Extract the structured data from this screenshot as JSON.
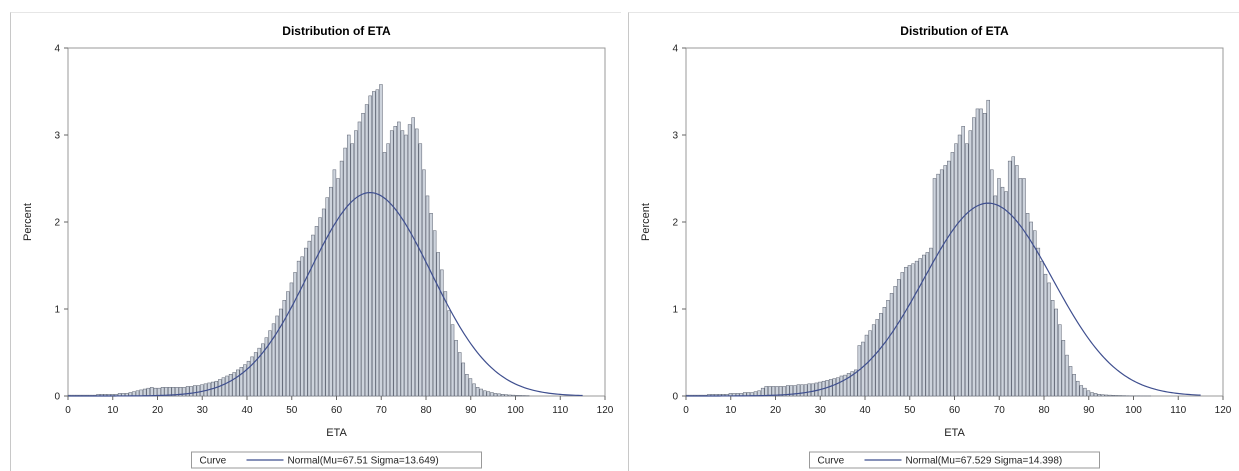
{
  "chart_data": [
    {
      "type": "bar",
      "title": "Distribution of ETA",
      "xlabel": "ETA",
      "ylabel": "Percent",
      "xlim": [
        0,
        120
      ],
      "ylim": [
        0,
        4
      ],
      "xticks": [
        "0",
        "10",
        "20",
        "30",
        "40",
        "50",
        "60",
        "70",
        "80",
        "90",
        "100",
        "110",
        "120"
      ],
      "yticks": [
        "0",
        "1",
        "2",
        "3",
        "4"
      ],
      "bin_width": 0.8,
      "series": [
        {
          "type": "histogram",
          "x": [
            0.4,
            1.2,
            2.0,
            2.8,
            3.6,
            4.4,
            5.2,
            6.0,
            6.8,
            7.6,
            8.4,
            9.2,
            10.0,
            10.8,
            11.6,
            12.4,
            13.2,
            14.0,
            14.8,
            15.6,
            16.4,
            17.2,
            18.0,
            18.8,
            19.6,
            20.4,
            21.2,
            22.0,
            22.8,
            23.6,
            24.4,
            25.2,
            26.0,
            26.8,
            27.6,
            28.4,
            29.2,
            30.0,
            30.8,
            31.6,
            32.4,
            33.2,
            34.0,
            34.8,
            35.6,
            36.4,
            37.2,
            38.0,
            38.8,
            39.6,
            40.4,
            41.2,
            42.0,
            42.8,
            43.6,
            44.4,
            45.2,
            46.0,
            46.8,
            47.6,
            48.4,
            49.2,
            50.0,
            50.8,
            51.6,
            52.4,
            53.2,
            54.0,
            54.8,
            55.6,
            56.4,
            57.2,
            58.0,
            58.8,
            59.6,
            60.4,
            61.2,
            62.0,
            62.8,
            63.6,
            64.4,
            65.2,
            66.0,
            66.8,
            67.6,
            68.4,
            69.2,
            70.0,
            70.8,
            71.6,
            72.4,
            73.2,
            74.0,
            74.8,
            75.6,
            76.4,
            77.2,
            78.0,
            78.8,
            79.6,
            80.4,
            81.2,
            82.0,
            82.8,
            83.6,
            84.4,
            85.2,
            86.0,
            86.8,
            87.6,
            88.4,
            89.2,
            90.0,
            90.8,
            91.6,
            92.4,
            93.2,
            94.0,
            94.8,
            95.6,
            96.4,
            97.2,
            98.0,
            98.8,
            99.6,
            100.4,
            101.2,
            102.0,
            102.8,
            103.6
          ],
          "values": [
            0.01,
            0.01,
            0.01,
            0.01,
            0.01,
            0.01,
            0.01,
            0.01,
            0.02,
            0.02,
            0.02,
            0.02,
            0.02,
            0.02,
            0.03,
            0.03,
            0.03,
            0.04,
            0.05,
            0.06,
            0.07,
            0.08,
            0.09,
            0.1,
            0.09,
            0.09,
            0.1,
            0.1,
            0.1,
            0.1,
            0.1,
            0.1,
            0.1,
            0.11,
            0.11,
            0.12,
            0.12,
            0.13,
            0.14,
            0.15,
            0.16,
            0.17,
            0.19,
            0.21,
            0.23,
            0.25,
            0.27,
            0.3,
            0.33,
            0.36,
            0.4,
            0.45,
            0.5,
            0.55,
            0.6,
            0.67,
            0.75,
            0.83,
            0.92,
            1.0,
            1.1,
            1.2,
            1.3,
            1.42,
            1.55,
            1.6,
            1.7,
            1.78,
            1.85,
            1.95,
            2.05,
            2.15,
            2.28,
            2.4,
            2.6,
            2.5,
            2.7,
            2.85,
            3.0,
            2.9,
            3.05,
            3.15,
            3.25,
            3.35,
            3.45,
            3.5,
            3.52,
            3.58,
            2.8,
            2.9,
            3.05,
            3.1,
            3.15,
            3.05,
            3.0,
            3.12,
            3.2,
            3.07,
            2.9,
            2.6,
            2.3,
            2.1,
            1.9,
            1.65,
            1.45,
            1.2,
            0.98,
            0.82,
            0.64,
            0.5,
            0.38,
            0.25,
            0.2,
            0.14,
            0.1,
            0.08,
            0.06,
            0.05,
            0.04,
            0.03,
            0.025,
            0.02,
            0.015,
            0.012,
            0.01,
            0.008,
            0.006,
            0.005,
            0.004
          ]
        },
        {
          "type": "line",
          "name": "Normal(Mu=67.51 Sigma=13.649)",
          "mu": 67.51,
          "sigma": 13.649
        }
      ],
      "legend": {
        "title": "Curve",
        "placement": "bottom"
      }
    },
    {
      "type": "bar",
      "title": "Distribution of ETA",
      "xlabel": "ETA",
      "ylabel": "Percent",
      "xlim": [
        0,
        120
      ],
      "ylim": [
        0,
        4
      ],
      "xticks": [
        "0",
        "10",
        "20",
        "30",
        "40",
        "50",
        "60",
        "70",
        "80",
        "90",
        "100",
        "110",
        "120"
      ],
      "yticks": [
        "0",
        "1",
        "2",
        "3",
        "4"
      ],
      "bin_width": 0.8,
      "series": [
        {
          "type": "histogram",
          "x": [
            0.4,
            1.2,
            2.0,
            2.8,
            3.6,
            4.4,
            5.2,
            6.0,
            6.8,
            7.6,
            8.4,
            9.2,
            10.0,
            10.8,
            11.6,
            12.4,
            13.2,
            14.0,
            14.8,
            15.6,
            16.4,
            17.2,
            18.0,
            18.8,
            19.6,
            20.4,
            21.2,
            22.0,
            22.8,
            23.6,
            24.4,
            25.2,
            26.0,
            26.8,
            27.6,
            28.4,
            29.2,
            30.0,
            30.8,
            31.6,
            32.4,
            33.2,
            34.0,
            34.8,
            35.6,
            36.4,
            37.2,
            38.0,
            38.8,
            39.6,
            40.4,
            41.2,
            42.0,
            42.8,
            43.6,
            44.4,
            45.2,
            46.0,
            46.8,
            47.6,
            48.4,
            49.2,
            50.0,
            50.8,
            51.6,
            52.4,
            53.2,
            54.0,
            54.8,
            55.6,
            56.4,
            57.2,
            58.0,
            58.8,
            59.6,
            60.4,
            61.2,
            62.0,
            62.8,
            63.6,
            64.4,
            65.2,
            66.0,
            66.8,
            67.6,
            68.4,
            69.2,
            70.0,
            70.8,
            71.6,
            72.4,
            73.2,
            74.0,
            74.8,
            75.6,
            76.4,
            77.2,
            78.0,
            78.8,
            79.6,
            80.4,
            81.2,
            82.0,
            82.8,
            83.6,
            84.4,
            85.2,
            86.0,
            86.8,
            87.6,
            88.4,
            89.2,
            90.0,
            90.8,
            91.6,
            92.4,
            93.2,
            94.0,
            94.8,
            95.6,
            96.4,
            97.2,
            98.0,
            98.8,
            99.6,
            100.4,
            101.2,
            102.0,
            102.8,
            103.6
          ],
          "values": [
            0.01,
            0.01,
            0.01,
            0.01,
            0.01,
            0.01,
            0.02,
            0.02,
            0.02,
            0.02,
            0.02,
            0.02,
            0.03,
            0.03,
            0.03,
            0.03,
            0.04,
            0.04,
            0.04,
            0.05,
            0.06,
            0.09,
            0.11,
            0.11,
            0.11,
            0.11,
            0.11,
            0.11,
            0.12,
            0.12,
            0.12,
            0.13,
            0.13,
            0.13,
            0.14,
            0.14,
            0.15,
            0.16,
            0.17,
            0.18,
            0.19,
            0.2,
            0.21,
            0.23,
            0.24,
            0.26,
            0.28,
            0.3,
            0.58,
            0.62,
            0.7,
            0.75,
            0.82,
            0.88,
            0.95,
            1.02,
            1.1,
            1.18,
            1.26,
            1.34,
            1.42,
            1.48,
            1.5,
            1.52,
            1.55,
            1.58,
            1.62,
            1.65,
            1.7,
            2.5,
            2.55,
            2.6,
            2.65,
            2.7,
            2.8,
            2.9,
            3.0,
            3.1,
            2.9,
            3.05,
            3.2,
            3.3,
            3.3,
            3.25,
            3.4,
            2.6,
            2.3,
            2.5,
            2.4,
            2.35,
            2.7,
            2.75,
            2.65,
            2.5,
            2.5,
            2.1,
            2.0,
            1.9,
            1.7,
            1.55,
            1.4,
            1.3,
            1.1,
            1.0,
            0.82,
            0.64,
            0.47,
            0.34,
            0.25,
            0.17,
            0.12,
            0.09,
            0.06,
            0.04,
            0.03,
            0.02,
            0.015,
            0.012,
            0.01,
            0.008,
            0.006,
            0.005,
            0.004,
            0.003,
            0.002,
            0.002,
            0.002,
            0.001,
            0.001,
            0.001
          ]
        },
        {
          "type": "line",
          "name": "Normal(Mu=67.529 Sigma=14.398)",
          "mu": 67.529,
          "sigma": 14.398
        }
      ],
      "legend": {
        "title": "Curve",
        "placement": "bottom"
      }
    }
  ],
  "colors": {
    "bar_fill": "#cdd3dc",
    "bar_stroke": "#5a6170",
    "curve": "#3f4f8f",
    "axis": "#666666",
    "frame": "#999999"
  }
}
